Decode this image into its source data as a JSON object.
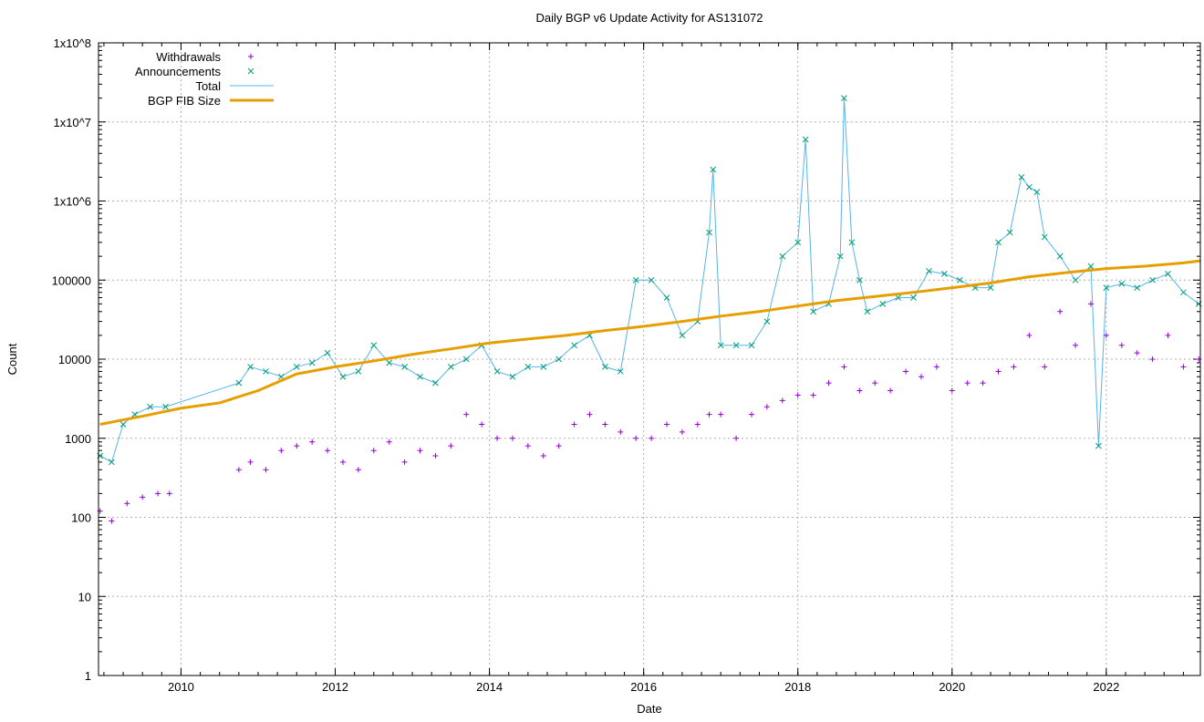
{
  "chart_data": {
    "type": "scatter",
    "title": "Daily BGP v6 Update Activity for AS131072",
    "xlabel": "Date",
    "ylabel": "Count",
    "xlim": [
      2008.93,
      2023.22
    ],
    "ylim": [
      1,
      100000000
    ],
    "yscale": "log",
    "grid": true,
    "legend_position": "top-left",
    "xticks": [
      "2010",
      "2012",
      "2014",
      "2016",
      "2018",
      "2020",
      "2022"
    ],
    "yticks": [
      {
        "value": 1,
        "label": "1"
      },
      {
        "value": 10,
        "label": "10"
      },
      {
        "value": 100,
        "label": "100"
      },
      {
        "value": 1000,
        "label": "1000"
      },
      {
        "value": 10000,
        "label": "10000"
      },
      {
        "value": 100000,
        "label": "100000"
      },
      {
        "value": 1000000,
        "label": "1x10^6"
      },
      {
        "value": 10000000,
        "label": "1x10^7"
      },
      {
        "value": 100000000,
        "label": "1x10^8"
      }
    ],
    "series": [
      {
        "name": "Withdrawals",
        "style": "points-plus",
        "color": "#9400d3",
        "x": [
          2008.95,
          2009.1,
          2009.3,
          2009.5,
          2009.7,
          2009.85,
          2010.75,
          2010.9,
          2011.1,
          2011.3,
          2011.5,
          2011.7,
          2011.9,
          2012.1,
          2012.3,
          2012.5,
          2012.7,
          2012.9,
          2013.1,
          2013.3,
          2013.5,
          2013.7,
          2013.9,
          2014.1,
          2014.3,
          2014.5,
          2014.7,
          2014.9,
          2015.1,
          2015.3,
          2015.5,
          2015.7,
          2015.9,
          2016.1,
          2016.3,
          2016.5,
          2016.7,
          2016.85,
          2017.0,
          2017.2,
          2017.4,
          2017.6,
          2017.8,
          2018.0,
          2018.2,
          2018.4,
          2018.6,
          2018.8,
          2019.0,
          2019.2,
          2019.4,
          2019.6,
          2019.8,
          2020.0,
          2020.2,
          2020.4,
          2020.6,
          2020.8,
          2021.0,
          2021.2,
          2021.4,
          2021.6,
          2021.8,
          2022.0,
          2022.2,
          2022.4,
          2022.6,
          2022.8,
          2023.0,
          2023.2
        ],
        "y": [
          120,
          90,
          150,
          180,
          200,
          200,
          400,
          500,
          400,
          700,
          800,
          900,
          700,
          500,
          400,
          700,
          900,
          500,
          700,
          600,
          800,
          2000,
          1500,
          1000,
          1000,
          800,
          600,
          800,
          1500,
          2000,
          1500,
          1200,
          1000,
          1000,
          1500,
          1200,
          1500,
          2000,
          2000,
          1000,
          2000,
          2500,
          3000,
          3500,
          3500,
          5000,
          8000,
          4000,
          5000,
          4000,
          7000,
          6000,
          8000,
          4000,
          5000,
          5000,
          7000,
          8000,
          20000,
          8000,
          40000,
          15000,
          50000,
          20000,
          15000,
          12000,
          10000,
          20000,
          8000,
          10000
        ]
      },
      {
        "name": "Announcements",
        "style": "points-x",
        "color": "#009e73",
        "x": [
          2008.95,
          2009.1,
          2009.25,
          2009.4,
          2009.6,
          2009.8,
          2010.75,
          2010.9,
          2011.1,
          2011.3,
          2011.5,
          2011.7,
          2011.9,
          2012.1,
          2012.3,
          2012.5,
          2012.7,
          2012.9,
          2013.1,
          2013.3,
          2013.5,
          2013.7,
          2013.9,
          2014.1,
          2014.3,
          2014.5,
          2014.7,
          2014.9,
          2015.1,
          2015.3,
          2015.5,
          2015.7,
          2015.9,
          2016.1,
          2016.3,
          2016.5,
          2016.7,
          2016.85,
          2016.9,
          2017.0,
          2017.2,
          2017.4,
          2017.6,
          2017.8,
          2018.0,
          2018.1,
          2018.2,
          2018.4,
          2018.55,
          2018.6,
          2018.7,
          2018.8,
          2018.9,
          2019.1,
          2019.3,
          2019.5,
          2019.7,
          2019.9,
          2020.1,
          2020.3,
          2020.5,
          2020.6,
          2020.75,
          2020.9,
          2021.0,
          2021.1,
          2021.2,
          2021.4,
          2021.6,
          2021.8,
          2021.9,
          2022.0,
          2022.2,
          2022.4,
          2022.6,
          2022.8,
          2023.0,
          2023.2
        ],
        "y": [
          600,
          500,
          1500,
          2000,
          2500,
          2500,
          5000,
          8000,
          7000,
          6000,
          8000,
          9000,
          12000,
          6000,
          7000,
          15000,
          9000,
          8000,
          6000,
          5000,
          8000,
          10000,
          15000,
          7000,
          6000,
          8000,
          8000,
          10000,
          15000,
          20000,
          8000,
          7000,
          100000,
          100000,
          60000,
          20000,
          30000,
          400000,
          2500000,
          15000,
          15000,
          15000,
          30000,
          200000,
          300000,
          6000000,
          40000,
          50000,
          200000,
          20000000,
          300000,
          100000,
          40000,
          50000,
          60000,
          60000,
          130000,
          120000,
          100000,
          80000,
          80000,
          300000,
          400000,
          2000000,
          1500000,
          1300000,
          350000,
          200000,
          100000,
          150000,
          800,
          80000,
          90000,
          80000,
          100000,
          120000,
          70000,
          50000
        ]
      },
      {
        "name": "Total",
        "style": "line",
        "color": "#56b4e9",
        "same_x_as": "Announcements"
      },
      {
        "name": "BGP FIB Size",
        "style": "line-thick",
        "color": "#e69f00",
        "x": [
          2008.95,
          2009.5,
          2010.0,
          2010.5,
          2011.0,
          2011.5,
          2012.0,
          2012.5,
          2013.0,
          2013.5,
          2014.0,
          2014.5,
          2015.0,
          2015.5,
          2016.0,
          2016.5,
          2017.0,
          2017.5,
          2018.0,
          2018.5,
          2019.0,
          2019.5,
          2020.0,
          2020.5,
          2021.0,
          2021.5,
          2022.0,
          2022.5,
          2023.0,
          2023.22
        ],
        "y": [
          1500,
          1900,
          2400,
          2800,
          4000,
          6500,
          8000,
          9500,
          11500,
          13500,
          16000,
          18000,
          20000,
          23000,
          26000,
          30000,
          35000,
          40000,
          47000,
          55000,
          62000,
          70000,
          80000,
          92000,
          110000,
          125000,
          140000,
          150000,
          165000,
          175000
        ]
      }
    ]
  }
}
